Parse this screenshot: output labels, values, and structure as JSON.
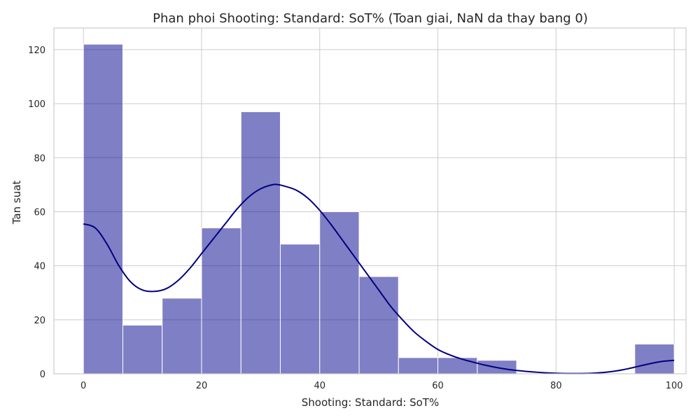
{
  "chart_data": {
    "type": "bar",
    "subtype": "histogram-with-kde",
    "title": "Phan phoi Shooting: Standard: SoT% (Toan giai, NaN da thay bang 0)",
    "xlabel": "Shooting: Standard: SoT%",
    "ylabel": "Tan suat",
    "xlim": [
      -5,
      102
    ],
    "ylim": [
      0,
      128
    ],
    "xticks": [
      0,
      20,
      40,
      60,
      80,
      100
    ],
    "yticks": [
      0,
      20,
      40,
      60,
      80,
      100,
      120
    ],
    "grid": true,
    "bin_edges": [
      0,
      6.67,
      13.33,
      20,
      26.67,
      33.33,
      40,
      46.67,
      53.33,
      60,
      66.67,
      73.33,
      80,
      86.67,
      93.33,
      100
    ],
    "counts": [
      122,
      18,
      28,
      54,
      97,
      48,
      60,
      36,
      6,
      6,
      5,
      0,
      0,
      0,
      11
    ],
    "kde": {
      "x": [
        0,
        2,
        4,
        6,
        8,
        10,
        12,
        14,
        16,
        18,
        20,
        22,
        24,
        26,
        28,
        30,
        32,
        33,
        34,
        36,
        38,
        40,
        42,
        44,
        46,
        48,
        50,
        52,
        54,
        56,
        58,
        60,
        62,
        64,
        66,
        68,
        70,
        72,
        74,
        76,
        78,
        80,
        82,
        84,
        86,
        88,
        90,
        92,
        94,
        96,
        98,
        100
      ],
      "y": [
        55.5,
        54,
        48,
        40,
        34,
        31,
        30.5,
        31.5,
        34.5,
        39,
        44.5,
        50,
        55.5,
        61,
        65.5,
        68.5,
        70,
        70,
        69.5,
        68,
        65,
        60.5,
        55,
        49,
        43,
        37,
        31,
        25,
        20,
        15.5,
        12,
        9,
        7,
        5.5,
        4.3,
        3.2,
        2.3,
        1.6,
        1.1,
        0.7,
        0.4,
        0.2,
        0.1,
        0.1,
        0.2,
        0.5,
        1,
        1.8,
        2.8,
        3.8,
        4.6,
        5
      ]
    }
  }
}
